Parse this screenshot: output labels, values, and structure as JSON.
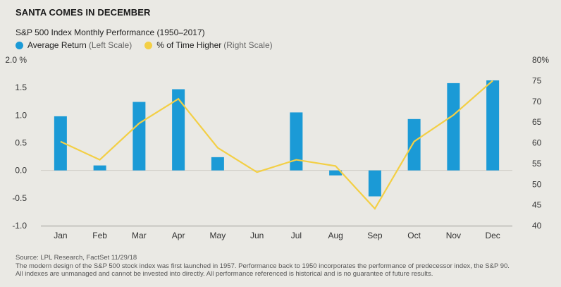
{
  "header": {
    "title": "SANTA COMES IN DECEMBER",
    "subtitle": "S&P 500 Index Monthly Performance (1950–2017)"
  },
  "legend": {
    "items": [
      {
        "label": "Average Return",
        "note": "(Left Scale)",
        "color": "#1b9ad6"
      },
      {
        "label": "% of Time Higher",
        "note": "(Right Scale)",
        "color": "#f3cf45"
      }
    ]
  },
  "chart_data": {
    "type": "bar",
    "categories": [
      "Jan",
      "Feb",
      "Mar",
      "Apr",
      "May",
      "Jun",
      "Jul",
      "Aug",
      "Sep",
      "Oct",
      "Nov",
      "Dec"
    ],
    "series": [
      {
        "name": "Average Return",
        "type": "bar",
        "axis": "left",
        "color": "#1b9ad6",
        "values": [
          0.98,
          0.09,
          1.24,
          1.47,
          0.24,
          0.0,
          1.05,
          -0.09,
          -0.47,
          0.93,
          1.58,
          1.63
        ]
      },
      {
        "name": "% of Time Higher",
        "type": "line",
        "axis": "right",
        "color": "#f3cf45",
        "values": [
          60.3,
          55.9,
          64.7,
          70.6,
          58.8,
          52.9,
          55.9,
          54.4,
          44.1,
          60.3,
          66.7,
          75.0
        ]
      }
    ],
    "y_left": {
      "ylim": [
        -1.0,
        2.0
      ],
      "ticks": [
        -1.0,
        -0.5,
        0.0,
        0.5,
        1.0,
        1.5,
        2.0
      ],
      "tick_labels": [
        "-1.0",
        "-0.5",
        "0.0",
        "0.5",
        "1.0",
        "1.5",
        "2.0 %"
      ]
    },
    "y_right": {
      "ylim": [
        40,
        80
      ],
      "ticks": [
        40,
        45,
        50,
        55,
        60,
        65,
        70,
        75,
        80
      ],
      "tick_labels": [
        "40",
        "45",
        "50",
        "55",
        "60",
        "65",
        "70",
        "75",
        "80%"
      ]
    },
    "grid": false
  },
  "footer": {
    "lines": [
      "Source: LPL Research, FactSet   11/29/18",
      "The modern design of the S&P 500 stock index was first launched in 1957. Performance back to 1950 incorporates the performance of predecessor index, the S&P 90.",
      "All indexes are unmanaged and cannot be invested into directly. All performance referenced is historical and is no guarantee of future results."
    ]
  }
}
